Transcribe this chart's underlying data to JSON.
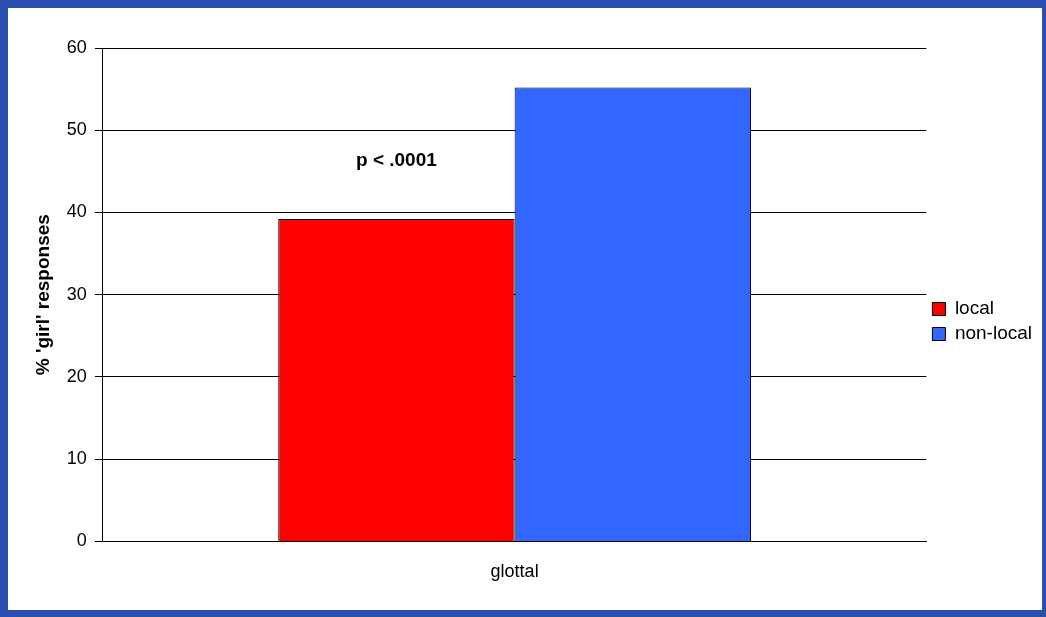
{
  "chart_data": {
    "type": "bar",
    "ylabel": "% 'girl' responses",
    "categories": [
      "glottal"
    ],
    "series": [
      {
        "name": "local",
        "color": "#ff0000",
        "values": [
          39.2
        ]
      },
      {
        "name": "non-local",
        "color": "#3366ff",
        "values": [
          55.2
        ]
      }
    ],
    "ylim": [
      0,
      60
    ],
    "yticks": [
      0,
      10,
      20,
      30,
      40,
      50,
      60
    ],
    "grid": "y",
    "legend": "right",
    "annotations": [
      "p < .0001"
    ]
  }
}
